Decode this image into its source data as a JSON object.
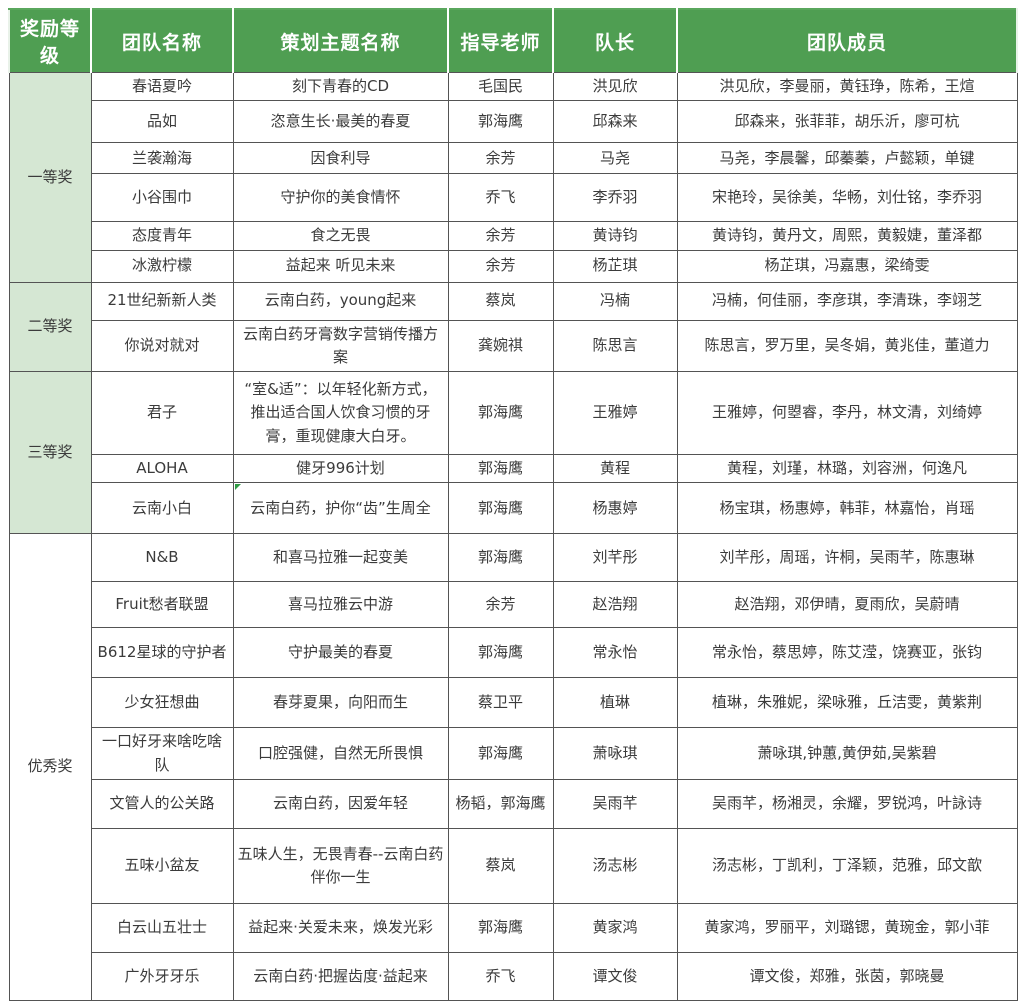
{
  "colors": {
    "header_bg": "#4f9e52",
    "header_text": "#ffffff",
    "award_section_bg": "#d5e7d3",
    "grid_border": "#545454",
    "body_text": "#3b3b3b",
    "note_marker": "#2e9b44"
  },
  "table": {
    "columns": [
      {
        "label": "奖励等级"
      },
      {
        "label": "团队名称"
      },
      {
        "label": "策划主题名称"
      },
      {
        "label": "指导老师"
      },
      {
        "label": "队长"
      },
      {
        "label": "团队成员"
      }
    ],
    "sections": [
      {
        "award": "一等奖",
        "highlight": true,
        "rows": [
          {
            "team": "春语夏吟",
            "theme": "刻下青春的CD",
            "teacher": "毛国民",
            "captain": "洪见欣",
            "members": "洪见欣，李曼丽，黄钰琤，陈希，王煊"
          },
          {
            "team": "品如",
            "theme": "恣意生长·最美的春夏",
            "teacher": "郭海鹰",
            "captain": "邱森来",
            "members": "邱森来，张菲菲，胡乐沂，廖可杭"
          },
          {
            "team": "兰袭瀚海",
            "theme": "因食利导",
            "teacher": "余芳",
            "captain": "马尧",
            "members": "马尧，李晨馨，邱蓁蓁，卢懿颖，单键"
          },
          {
            "team": "小谷围巾",
            "theme": "守护你的美食情怀",
            "teacher": "乔飞",
            "captain": "李乔羽",
            "members": "宋艳玲，吴徐美，华畅，刘仕铭，李乔羽"
          },
          {
            "team": "态度青年",
            "theme": "食之无畏",
            "teacher": "余芳",
            "captain": "黄诗钧",
            "members": "黄诗钧，黄丹文，周熙，黄毅婕，董泽都"
          },
          {
            "team": "冰激柠檬",
            "theme": "益起来 听见未来",
            "teacher": "余芳",
            "captain": "杨芷琪",
            "members": "杨芷琪，冯嘉惠，梁绮雯"
          }
        ]
      },
      {
        "award": "二等奖",
        "highlight": true,
        "rows": [
          {
            "team": "21世纪新新人类",
            "theme": "云南白药，young起来",
            "teacher": "蔡岚",
            "captain": "冯楠",
            "members": "冯楠，何佳丽，李彦琪，李清珠，李翊芝"
          },
          {
            "team": "你说对就对",
            "theme": "云南白药牙膏数字营销传播方案",
            "teacher": "龚婉祺",
            "captain": "陈思言",
            "members": "陈思言，罗万里，吴冬娟，黄兆佳，董道力"
          }
        ]
      },
      {
        "award": "三等奖",
        "highlight": true,
        "rows": [
          {
            "team": "君子",
            "theme": "“室&适”：以年轻化新方式，推出适合国人饮食习惯的牙膏，重现健康大白牙。",
            "teacher": "郭海鹰",
            "captain": "王雅婷",
            "members": "王雅婷，何曌睿，李丹，林文清，刘绮婷"
          },
          {
            "team": "ALOHA",
            "theme": "健牙996计划",
            "teacher": "郭海鹰",
            "captain": "黄程",
            "members": "黄程，刘瑾，林璐，刘容洲，何逸凡"
          },
          {
            "team": "云南小白",
            "theme": "云南白药，护你“齿”生周全",
            "teacher": "郭海鹰",
            "captain": "杨惠婷",
            "members": "杨宝琪，杨惠婷，韩菲，林嘉怡，肖瑶",
            "note": true
          }
        ]
      },
      {
        "award": "优秀奖",
        "highlight": false,
        "rows": [
          {
            "team": "N&B",
            "theme": "和喜马拉雅一起变美",
            "teacher": "郭海鹰",
            "captain": "刘芊彤",
            "members": "刘芊彤，周瑶，许桐，吴雨芊，陈惠琳"
          },
          {
            "team": "Fruit愁者联盟",
            "theme": "喜马拉雅云中游",
            "teacher": "余芳",
            "captain": "赵浩翔",
            "members": "赵浩翔，邓伊晴，夏雨欣，吴蔚晴"
          },
          {
            "team": "B612星球的守护者",
            "theme": "守护最美的春夏",
            "teacher": "郭海鹰",
            "captain": "常永怡",
            "members": "常永怡，蔡思婷，陈艾滢，饶赛亚，张钧"
          },
          {
            "team": "少女狂想曲",
            "theme": "春芽夏果，向阳而生",
            "teacher": "蔡卫平",
            "captain": "植琳",
            "members": "植琳，朱雅妮，梁咏雅，丘洁雯，黄紫荆"
          },
          {
            "team": "一口好牙来啥吃啥队",
            "theme": "口腔强健，自然无所畏惧",
            "teacher": "郭海鹰",
            "captain": "萧咏琪",
            "members": "萧咏琪,钟蕙,黄伊茹,吴紫碧"
          },
          {
            "team": "文管人的公关路",
            "theme": "云南白药，因爱年轻",
            "teacher": "杨韬，郭海鹰",
            "captain": "吴雨芊",
            "members": "吴雨芊，杨湘灵，余耀，罗锐鸿，叶詠诗"
          },
          {
            "team": "五味小盆友",
            "theme": "五味人生，无畏青春--云南白药伴你一生",
            "teacher": "蔡岚",
            "captain": "汤志彬",
            "members": "汤志彬，丁凯利，丁泽颖，范雅，邱文歆"
          },
          {
            "team": "白云山五壮士",
            "theme": "益起来·关爱未来，焕发光彩",
            "teacher": "郭海鹰",
            "captain": "黄家鸿",
            "members": "黄家鸿，罗丽平，刘璐锶，黄琬金，郭小菲"
          },
          {
            "team": "广外牙牙乐",
            "theme": "云南白药·把握齿度·益起来",
            "teacher": "乔飞",
            "captain": "谭文俊",
            "members": "谭文俊，郑雅，张茵，郭晓曼"
          }
        ]
      }
    ]
  }
}
